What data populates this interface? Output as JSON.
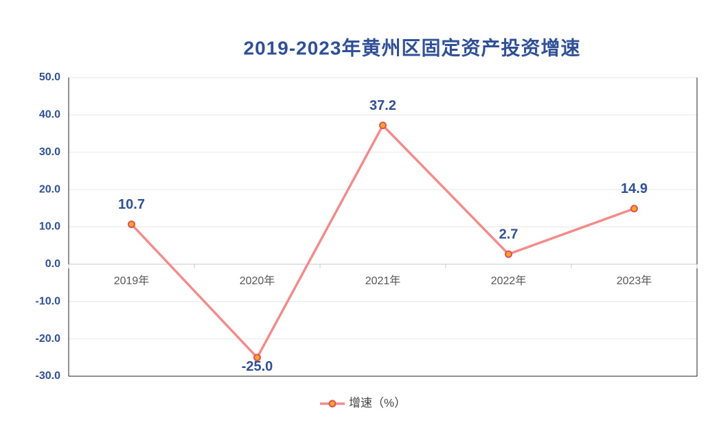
{
  "chart_data": {
    "type": "line",
    "title": "2019-2023年黄州区固定资产投资增速",
    "categories": [
      "2019年",
      "2020年",
      "2021年",
      "2022年",
      "2023年"
    ],
    "series": [
      {
        "name": "增速（%）",
        "color": "#f38b8b",
        "marker_color": "#f5a623",
        "values": [
          10.7,
          -25.0,
          37.2,
          2.7,
          14.9
        ],
        "value_labels": [
          "10.7",
          "-25.0",
          "37.2",
          "2.7",
          "14.9"
        ]
      }
    ],
    "ylim": [
      -30,
      50
    ],
    "yticks": [
      {
        "value": -30,
        "label": "-30.0"
      },
      {
        "value": -20,
        "label": "-20.0"
      },
      {
        "value": -10,
        "label": "-10.0"
      },
      {
        "value": 0,
        "label": "0.0"
      },
      {
        "value": 10,
        "label": "10.0"
      },
      {
        "value": 20,
        "label": "20.0"
      },
      {
        "value": 30,
        "label": "30.0"
      },
      {
        "value": 40,
        "label": "40.0"
      },
      {
        "value": 50,
        "label": "50.0"
      }
    ],
    "grid": true,
    "legend": "bottom"
  }
}
